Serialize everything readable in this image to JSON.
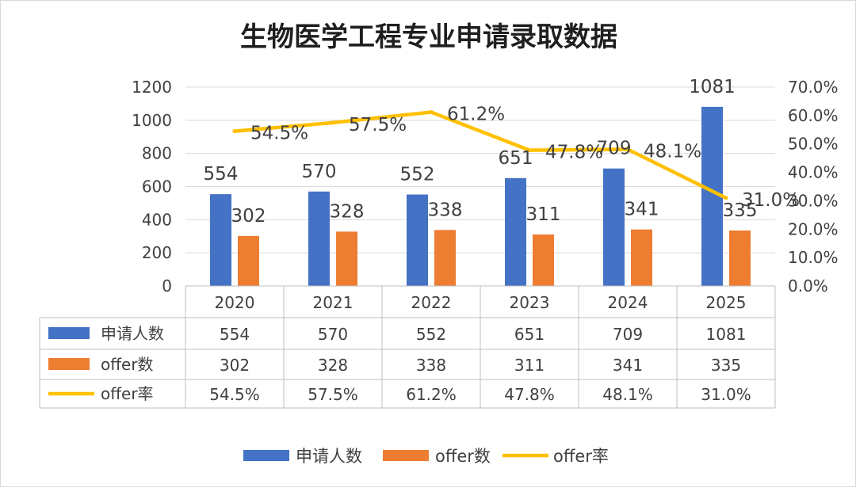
{
  "chart_data": {
    "type": "bar",
    "title": "生物医学工程专业申请录取数据",
    "categories": [
      "2020",
      "2021",
      "2022",
      "2023",
      "2024",
      "2025"
    ],
    "series": [
      {
        "name": "申请人数",
        "kind": "bar",
        "axis": "left",
        "color": "#4472c4",
        "values": [
          554,
          570,
          552,
          651,
          709,
          1081
        ],
        "labels": [
          "554",
          "570",
          "552",
          "651",
          "709",
          "1081"
        ]
      },
      {
        "name": "offer数",
        "kind": "bar",
        "axis": "left",
        "color": "#ed7d31",
        "values": [
          302,
          328,
          338,
          311,
          341,
          335
        ],
        "labels": [
          "302",
          "328",
          "338",
          "311",
          "341",
          "335"
        ]
      },
      {
        "name": "offer率",
        "kind": "line",
        "axis": "right",
        "color": "#ffc000",
        "values": [
          54.5,
          57.5,
          61.2,
          47.8,
          48.1,
          31.0
        ],
        "labels": [
          "54.5%",
          "57.5%",
          "61.2%",
          "47.8%",
          "48.1%",
          "31.0%"
        ]
      }
    ],
    "y_left": {
      "min": 0,
      "max": 1200,
      "ticks": [
        "0",
        "200",
        "400",
        "600",
        "800",
        "1000",
        "1200"
      ]
    },
    "y_right": {
      "min": 0,
      "max": 70,
      "ticks": [
        "0.0%",
        "10.0%",
        "20.0%",
        "30.0%",
        "40.0%",
        "50.0%",
        "60.0%",
        "70.0%"
      ]
    },
    "grid": true,
    "data_table": true,
    "legend_position": "bottom"
  }
}
